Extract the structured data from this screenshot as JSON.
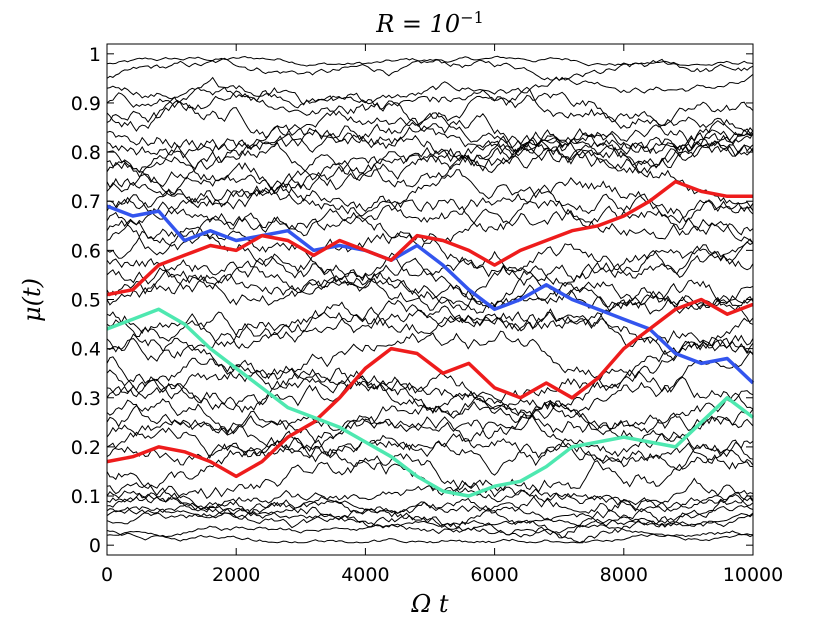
{
  "chart_data": {
    "type": "line",
    "title": "R = 10",
    "title_exponent": "−1",
    "xlabel": "Ω t",
    "ylabel": "μ(t)",
    "xlim": [
      0,
      10000
    ],
    "ylim": [
      -0.02,
      1.02
    ],
    "x_ticks": [
      0,
      2000,
      4000,
      6000,
      8000,
      10000
    ],
    "x_tick_labels": [
      "0",
      "2000",
      "4000",
      "6000",
      "8000",
      "10000"
    ],
    "y_ticks": [
      0,
      0.1,
      0.2,
      0.3,
      0.4,
      0.5,
      0.6,
      0.7,
      0.8,
      0.9,
      1
    ],
    "y_tick_labels": [
      "0",
      "0.1",
      "0.2",
      "0.3",
      "0.4",
      "0.5",
      "0.6",
      "0.7",
      "0.8",
      "0.9",
      "1"
    ],
    "grid": false,
    "background_trajectory_color": "#000000",
    "background_trajectory_starts": [
      0.98,
      0.95,
      0.93,
      0.9,
      0.88,
      0.86,
      0.84,
      0.82,
      0.8,
      0.78,
      0.76,
      0.74,
      0.72,
      0.7,
      0.68,
      0.66,
      0.64,
      0.62,
      0.6,
      0.58,
      0.55,
      0.52,
      0.5,
      0.47,
      0.45,
      0.42,
      0.4,
      0.37,
      0.35,
      0.32,
      0.3,
      0.27,
      0.25,
      0.22,
      0.2,
      0.18,
      0.15,
      0.12,
      0.1,
      0.09,
      0.08,
      0.07,
      0.06,
      0.05,
      0.03,
      0.02
    ],
    "highlighted_series": [
      {
        "color": "#3355ee",
        "x": [
          0,
          400,
          800,
          1200,
          1600,
          2000,
          2400,
          2800,
          3200,
          3600,
          4000,
          4400,
          4800,
          5200,
          5600,
          6000,
          6400,
          6800,
          7200,
          7600,
          8000,
          8400,
          8800,
          9200,
          9600,
          10000
        ],
        "y": [
          0.69,
          0.67,
          0.68,
          0.62,
          0.64,
          0.62,
          0.63,
          0.64,
          0.6,
          0.61,
          0.6,
          0.58,
          0.61,
          0.57,
          0.52,
          0.48,
          0.5,
          0.53,
          0.5,
          0.48,
          0.46,
          0.44,
          0.39,
          0.37,
          0.38,
          0.33
        ]
      },
      {
        "color": "#ee1c1c",
        "x": [
          0,
          400,
          800,
          1200,
          1600,
          2000,
          2400,
          2800,
          3200,
          3600,
          4000,
          4400,
          4800,
          5200,
          5600,
          6000,
          6400,
          6800,
          7200,
          7600,
          8000,
          8400,
          8800,
          9200,
          9600,
          10000
        ],
        "y": [
          0.51,
          0.52,
          0.57,
          0.59,
          0.61,
          0.6,
          0.63,
          0.62,
          0.59,
          0.62,
          0.6,
          0.58,
          0.63,
          0.62,
          0.6,
          0.57,
          0.6,
          0.62,
          0.64,
          0.65,
          0.67,
          0.7,
          0.74,
          0.72,
          0.71,
          0.71
        ]
      },
      {
        "color": "#ee1c1c",
        "x": [
          0,
          400,
          800,
          1200,
          1600,
          2000,
          2400,
          2800,
          3200,
          3600,
          4000,
          4400,
          4800,
          5200,
          5600,
          6000,
          6400,
          6800,
          7200,
          7600,
          8000,
          8400,
          8800,
          9200,
          9600,
          10000
        ],
        "y": [
          0.17,
          0.18,
          0.2,
          0.19,
          0.17,
          0.14,
          0.17,
          0.22,
          0.25,
          0.3,
          0.36,
          0.4,
          0.39,
          0.35,
          0.37,
          0.32,
          0.3,
          0.33,
          0.3,
          0.34,
          0.4,
          0.44,
          0.48,
          0.5,
          0.47,
          0.49
        ]
      },
      {
        "color": "#4ee8b0",
        "x": [
          0,
          400,
          800,
          1200,
          1600,
          2000,
          2400,
          2800,
          3200,
          3600,
          4000,
          4400,
          4800,
          5200,
          5600,
          6000,
          6400,
          6800,
          7200,
          7600,
          8000,
          8400,
          8800,
          9200,
          9600,
          10000
        ],
        "y": [
          0.44,
          0.46,
          0.48,
          0.45,
          0.4,
          0.36,
          0.32,
          0.28,
          0.26,
          0.24,
          0.21,
          0.18,
          0.14,
          0.11,
          0.1,
          0.12,
          0.13,
          0.16,
          0.2,
          0.21,
          0.22,
          0.21,
          0.2,
          0.25,
          0.3,
          0.26
        ]
      }
    ]
  }
}
